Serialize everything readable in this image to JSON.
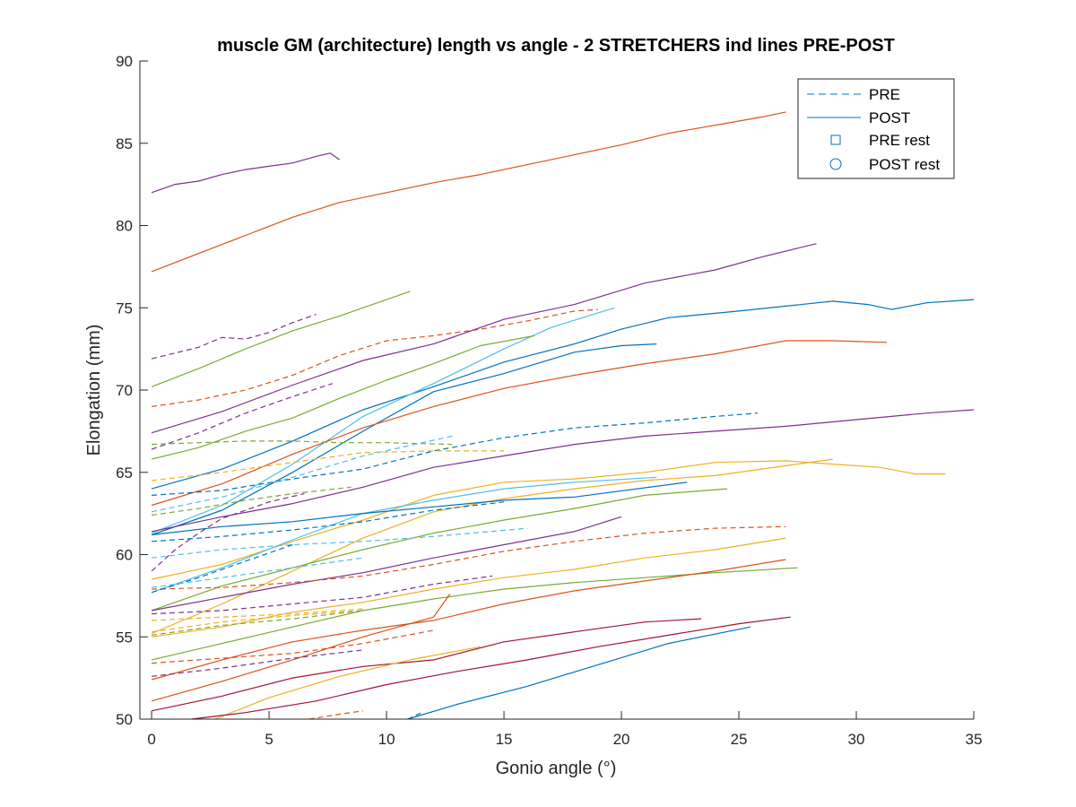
{
  "chart_data": {
    "type": "line",
    "title": "muscle GM (architecture) length vs angle - 2 STRETCHERS ind lines PRE-POST",
    "xlabel": "Gonio angle (°)",
    "ylabel": "Elongation (mm)",
    "xlim": [
      -0.5,
      35
    ],
    "ylim": [
      50,
      90
    ],
    "xticks": [
      0,
      5,
      10,
      15,
      20,
      25,
      30,
      35
    ],
    "yticks": [
      50,
      55,
      60,
      65,
      70,
      75,
      80,
      85,
      90
    ],
    "grid": false,
    "legend": {
      "location": "top-right",
      "entries": [
        {
          "label": "PRE",
          "style": "dashed"
        },
        {
          "label": "POST",
          "style": "solid"
        },
        {
          "label": "PRE rest",
          "marker": "square"
        },
        {
          "label": "POST rest",
          "marker": "circle"
        }
      ]
    },
    "series": [
      {
        "color": "#7E2F8E",
        "style": "solid",
        "x": [
          0,
          1,
          2,
          3,
          4,
          5,
          6,
          7,
          7.6,
          8
        ],
        "y": [
          82,
          82.5,
          82.7,
          83.1,
          83.4,
          83.6,
          83.8,
          84.2,
          84.4,
          84.0
        ]
      },
      {
        "color": "#D95319",
        "style": "solid",
        "x": [
          0,
          2,
          4,
          6,
          8,
          10,
          12,
          14,
          16,
          18,
          20,
          22,
          24,
          26,
          27
        ],
        "y": [
          77.2,
          78.3,
          79.4,
          80.5,
          81.4,
          82.0,
          82.6,
          83.1,
          83.7,
          84.3,
          84.9,
          85.6,
          86.1,
          86.6,
          86.9
        ]
      },
      {
        "color": "#7E2F8E",
        "style": "dashed",
        "x": [
          0,
          2,
          3,
          4,
          5,
          6,
          7
        ],
        "y": [
          71.9,
          72.6,
          73.2,
          73.1,
          73.5,
          74.1,
          74.6
        ]
      },
      {
        "color": "#77AC30",
        "style": "solid",
        "x": [
          0,
          2,
          4,
          6,
          8,
          11
        ],
        "y": [
          70.2,
          71.3,
          72.5,
          73.6,
          74.5,
          76.0
        ]
      },
      {
        "color": "#D95319",
        "style": "dashed",
        "x": [
          0,
          2,
          4,
          6,
          8,
          10,
          12,
          14,
          16,
          18,
          19
        ],
        "y": [
          69.0,
          69.4,
          70.0,
          70.9,
          72.1,
          73.0,
          73.3,
          73.7,
          74.2,
          74.8,
          74.9
        ]
      },
      {
        "color": "#7E2F8E",
        "style": "solid",
        "x": [
          0,
          3,
          6,
          9,
          12,
          15,
          18,
          21,
          24,
          26,
          28.3
        ],
        "y": [
          67.4,
          68.7,
          70.3,
          71.8,
          72.8,
          74.3,
          75.2,
          76.5,
          77.3,
          78.1,
          78.9
        ]
      },
      {
        "color": "#0072BD",
        "style": "solid",
        "x": [
          0,
          3,
          6,
          9,
          12,
          15,
          18,
          20,
          22,
          25,
          27,
          29,
          30.5,
          31.5,
          33,
          35
        ],
        "y": [
          64.0,
          65.2,
          66.9,
          68.8,
          70.2,
          71.7,
          72.8,
          73.7,
          74.4,
          74.8,
          75.1,
          75.4,
          75.2,
          74.9,
          75.3,
          75.5
        ]
      },
      {
        "color": "#4DBEEE",
        "style": "solid",
        "x": [
          0,
          3,
          6,
          9,
          12,
          15,
          17,
          19.7
        ],
        "y": [
          61.3,
          63.0,
          65.5,
          68.4,
          70.4,
          72.5,
          73.8,
          75.0
        ]
      },
      {
        "color": "#77AC30",
        "style": "solid",
        "x": [
          0,
          2,
          4,
          6,
          8,
          10,
          12,
          14,
          16.3
        ],
        "y": [
          65.8,
          66.5,
          67.5,
          68.3,
          69.5,
          70.6,
          71.6,
          72.7,
          73.3
        ]
      },
      {
        "color": "#7E2F8E",
        "style": "dashed",
        "x": [
          0,
          2,
          4,
          6,
          7.7
        ],
        "y": [
          66.4,
          67.4,
          68.6,
          69.6,
          70.4
        ]
      },
      {
        "color": "#0072BD",
        "style": "solid",
        "x": [
          0,
          3,
          6,
          9,
          12,
          15,
          18,
          20,
          21.5
        ],
        "y": [
          61.2,
          62.7,
          65.0,
          67.5,
          69.9,
          71.0,
          72.3,
          72.7,
          72.8
        ]
      },
      {
        "color": "#D95319",
        "style": "solid",
        "x": [
          0,
          3,
          6,
          9,
          12,
          15,
          18,
          21,
          24,
          27,
          29,
          31.3
        ],
        "y": [
          63.0,
          64.3,
          66.1,
          67.7,
          69.0,
          70.1,
          70.9,
          71.6,
          72.2,
          73.0,
          73.0,
          72.9
        ]
      },
      {
        "color": "#0072BD",
        "style": "dashed",
        "x": [
          0,
          3,
          6,
          9,
          12,
          15,
          18,
          21,
          24,
          25.8
        ],
        "y": [
          63.6,
          63.9,
          64.6,
          65.2,
          66.3,
          67.1,
          67.7,
          68.0,
          68.4,
          68.6
        ]
      },
      {
        "color": "#77AC30",
        "style": "dashed",
        "x": [
          0,
          2,
          4,
          6,
          8,
          10,
          12.8
        ],
        "y": [
          66.7,
          66.8,
          66.9,
          66.9,
          66.8,
          66.8,
          66.7
        ]
      },
      {
        "color": "#7E2F8E",
        "style": "solid",
        "x": [
          0,
          3,
          6,
          9,
          12,
          15,
          18,
          21,
          24,
          27,
          30,
          33,
          35
        ],
        "y": [
          61.4,
          62.3,
          63.1,
          64.1,
          65.3,
          66.0,
          66.7,
          67.2,
          67.5,
          67.8,
          68.2,
          68.6,
          68.8
        ]
      },
      {
        "color": "#EDB120",
        "style": "dashed",
        "x": [
          0,
          3,
          6,
          9,
          12,
          15
        ],
        "y": [
          64.5,
          65.0,
          65.6,
          66.2,
          66.3,
          66.3
        ]
      },
      {
        "color": "#EDB120",
        "style": "solid",
        "x": [
          0,
          3,
          6,
          9,
          12,
          15,
          18,
          21,
          24,
          27,
          29,
          31,
          32.5,
          33.8
        ],
        "y": [
          58.5,
          59.4,
          60.8,
          62.1,
          63.6,
          64.4,
          64.6,
          65.0,
          65.6,
          65.7,
          65.5,
          65.3,
          64.9,
          64.9
        ]
      },
      {
        "color": "#EDB120",
        "style": "solid",
        "x": [
          0,
          3,
          6,
          9,
          12,
          15,
          18,
          21,
          24,
          27,
          29
        ],
        "y": [
          55.2,
          57.0,
          59.0,
          61.0,
          62.6,
          63.4,
          64.0,
          64.5,
          64.8,
          65.4,
          65.8
        ]
      },
      {
        "color": "#4DBEEE",
        "style": "solid",
        "x": [
          0,
          3,
          6,
          9,
          12,
          15,
          18,
          21.5
        ],
        "y": [
          57.7,
          59.2,
          60.9,
          62.5,
          63.3,
          64.0,
          64.4,
          64.7
        ]
      },
      {
        "color": "#0072BD",
        "style": "solid",
        "x": [
          0,
          3,
          6,
          9,
          12,
          15,
          18,
          22.8
        ],
        "y": [
          61.2,
          61.7,
          62.0,
          62.5,
          62.9,
          63.3,
          63.5,
          64.4
        ]
      },
      {
        "color": "#77AC30",
        "style": "solid",
        "x": [
          0,
          3,
          6,
          9,
          12,
          15,
          18,
          21,
          24.5
        ],
        "y": [
          56.6,
          58.1,
          59.2,
          60.3,
          61.3,
          62.1,
          62.8,
          63.6,
          64.0
        ]
      },
      {
        "color": "#4DBEEE",
        "style": "dashed",
        "x": [
          0,
          3,
          6,
          9,
          12.8
        ],
        "y": [
          62.6,
          63.5,
          64.7,
          66.0,
          67.2
        ]
      },
      {
        "color": "#77AC30",
        "style": "dashed",
        "x": [
          0,
          2,
          4,
          6,
          8.5
        ],
        "y": [
          62.4,
          62.8,
          63.3,
          63.7,
          64.1
        ]
      },
      {
        "color": "#7E2F8E",
        "style": "dashed",
        "x": [
          0,
          1,
          2,
          3,
          4,
          5,
          6.5
        ],
        "y": [
          59.0,
          60.3,
          61.3,
          62.2,
          62.7,
          63.2,
          63.7
        ]
      },
      {
        "color": "#0072BD",
        "style": "dashed",
        "x": [
          0,
          3,
          6,
          9,
          12,
          15
        ],
        "y": [
          60.8,
          61.1,
          61.5,
          62.0,
          62.7,
          63.2
        ]
      },
      {
        "color": "#4DBEEE",
        "style": "dashed",
        "x": [
          0,
          3,
          6,
          9,
          12,
          16
        ],
        "y": [
          59.8,
          60.3,
          60.6,
          60.8,
          61.1,
          61.6
        ]
      },
      {
        "color": "#7E2F8E",
        "style": "solid",
        "x": [
          0,
          3,
          6,
          9,
          12,
          15,
          18,
          20
        ],
        "y": [
          56.6,
          57.4,
          58.2,
          58.9,
          59.8,
          60.6,
          61.4,
          62.3
        ]
      },
      {
        "color": "#D95319",
        "style": "dashed",
        "x": [
          0,
          3,
          6,
          9,
          12,
          15,
          18,
          21,
          24,
          27
        ],
        "y": [
          57.9,
          58.0,
          58.3,
          58.7,
          59.4,
          60.2,
          60.8,
          61.3,
          61.6,
          61.7
        ]
      },
      {
        "color": "#0072BD",
        "style": "dashed",
        "x": [
          0,
          2,
          4,
          6
        ],
        "y": [
          57.7,
          58.6,
          59.6,
          60.6
        ]
      },
      {
        "color": "#4DBEEE",
        "style": "dashed",
        "x": [
          0,
          3,
          6,
          9
        ],
        "y": [
          58.0,
          58.6,
          59.2,
          59.8
        ]
      },
      {
        "color": "#EDB120",
        "style": "solid",
        "x": [
          0,
          3,
          6,
          9,
          12,
          15,
          18,
          21,
          24,
          27
        ],
        "y": [
          55.0,
          55.6,
          56.5,
          57.1,
          57.9,
          58.6,
          59.1,
          59.8,
          60.3,
          61.0
        ]
      },
      {
        "color": "#77AC30",
        "style": "solid",
        "x": [
          0,
          3,
          6,
          9,
          12,
          15,
          18,
          21,
          24,
          27.5
        ],
        "y": [
          53.6,
          54.6,
          55.6,
          56.6,
          57.3,
          57.9,
          58.3,
          58.6,
          58.9,
          59.2
        ]
      },
      {
        "color": "#D95319",
        "style": "solid",
        "x": [
          0,
          3,
          6,
          9,
          12,
          15,
          18,
          21,
          24,
          27
        ],
        "y": [
          52.4,
          53.6,
          54.7,
          55.4,
          56.0,
          57.0,
          57.8,
          58.4,
          59.0,
          59.7
        ]
      },
      {
        "color": "#7E2F8E",
        "style": "dashed",
        "x": [
          0,
          3,
          6,
          9,
          12,
          14.5
        ],
        "y": [
          56.4,
          56.6,
          57.0,
          57.4,
          58.2,
          58.7
        ]
      },
      {
        "color": "#EDB120",
        "style": "dashed",
        "x": [
          0,
          3,
          6,
          9
        ],
        "y": [
          56.0,
          56.2,
          56.4,
          56.7
        ]
      },
      {
        "color": "#EDB120",
        "style": "dashed",
        "x": [
          0,
          3,
          6,
          9
        ],
        "y": [
          55.3,
          55.9,
          56.3,
          56.6
        ]
      },
      {
        "color": "#77AC30",
        "style": "dashed",
        "x": [
          0,
          3,
          6,
          9
        ],
        "y": [
          55.1,
          55.7,
          56.1,
          56.6
        ]
      },
      {
        "color": "#D95319",
        "style": "solid",
        "x": [
          0,
          3,
          6,
          9,
          12,
          12.7
        ],
        "y": [
          51.1,
          52.3,
          53.6,
          55.0,
          56.2,
          57.6
        ]
      },
      {
        "color": "#D95319",
        "style": "dashed",
        "x": [
          0,
          3,
          6,
          9,
          12
        ],
        "y": [
          53.4,
          53.7,
          54.0,
          54.6,
          55.4
        ]
      },
      {
        "color": "#7E2F8E",
        "style": "dashed",
        "x": [
          0,
          3,
          6,
          9
        ],
        "y": [
          52.6,
          53.1,
          53.7,
          54.2
        ]
      },
      {
        "color": "#A2142F",
        "style": "solid",
        "x": [
          0,
          3,
          6,
          9,
          12,
          15,
          18,
          21,
          23.4
        ],
        "y": [
          50.5,
          51.4,
          52.5,
          53.2,
          53.6,
          54.7,
          55.3,
          55.9,
          56.1
        ]
      },
      {
        "color": "#EDB120",
        "style": "solid",
        "x": [
          2.7,
          5,
          8,
          11,
          14
        ],
        "y": [
          50.0,
          51.3,
          52.6,
          53.6,
          54.4
        ]
      },
      {
        "color": "#A2142F",
        "style": "solid",
        "x": [
          1.7,
          4,
          7,
          10,
          13,
          16,
          19,
          22,
          25,
          27.2
        ],
        "y": [
          50.0,
          50.4,
          51.1,
          52.1,
          52.9,
          53.6,
          54.4,
          55.1,
          55.8,
          56.2
        ]
      },
      {
        "color": "#0072BD",
        "style": "solid",
        "x": [
          10.9,
          13,
          16,
          19,
          22,
          25.5
        ],
        "y": [
          50.0,
          50.9,
          52.0,
          53.3,
          54.6,
          55.6
        ]
      },
      {
        "color": "#0072BD",
        "style": "dashed",
        "x": [
          10.9,
          11.5
        ],
        "y": [
          50.0,
          50.4
        ]
      },
      {
        "color": "#D95319",
        "style": "dashed",
        "x": [
          6.7,
          8,
          9
        ],
        "y": [
          50.0,
          50.3,
          50.5
        ]
      }
    ]
  }
}
